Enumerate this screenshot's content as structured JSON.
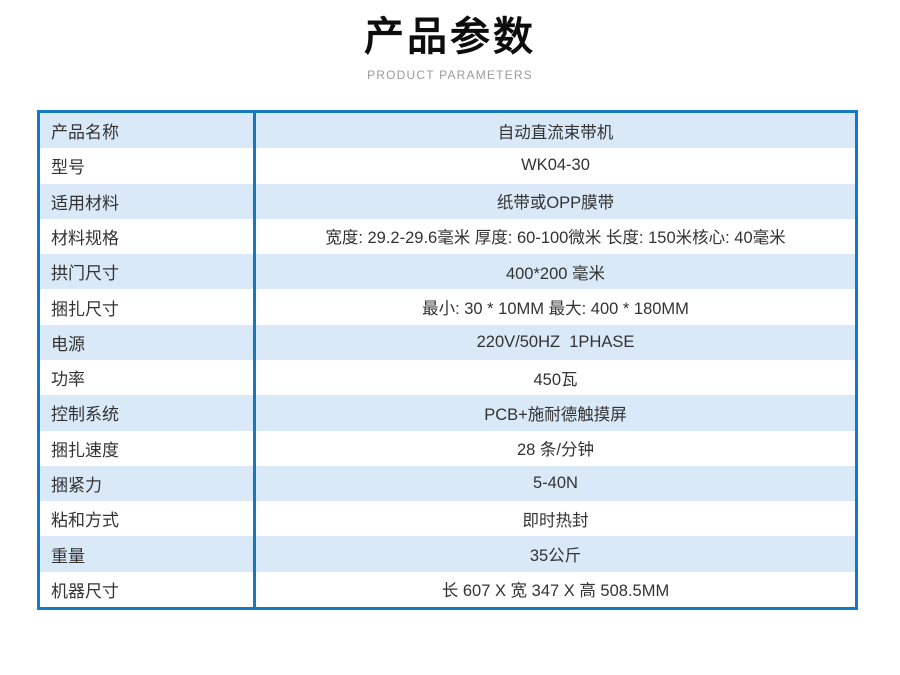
{
  "header": {
    "title": "产品参数",
    "subtitle": "PRODUCT PARAMETERS"
  },
  "table": {
    "rows": [
      {
        "label": "产品名称",
        "value": "自动直流束带机"
      },
      {
        "label": "型号",
        "value": "WK04-30"
      },
      {
        "label": "适用材料",
        "value": "纸带或OPP膜带"
      },
      {
        "label": "材料规格",
        "value": "宽度: 29.2-29.6毫米 厚度: 60-100微米 长度: 150米核心: 40毫米"
      },
      {
        "label": "拱门尺寸",
        "value": "400*200 毫米"
      },
      {
        "label": "捆扎尺寸",
        "value": "最小: 30 * 10MM 最大: 400 * 180MM"
      },
      {
        "label": "电源",
        "value": "220V/50HZ  1PHASE"
      },
      {
        "label": "功率",
        "value": "450瓦"
      },
      {
        "label": "控制系统",
        "value": "PCB+施耐德触摸屏"
      },
      {
        "label": "捆扎速度",
        "value": "28 条/分钟"
      },
      {
        "label": "捆紧力",
        "value": "5-40N"
      },
      {
        "label": "粘和方式",
        "value": "即时热封"
      },
      {
        "label": "重量",
        "value": "35公斤"
      },
      {
        "label": "机器尺寸",
        "value": "长 607 X 宽 347 X 高 508.5MM"
      }
    ]
  },
  "colors": {
    "table_border": "#1478c2",
    "row_alt_background": "#d9e9f8",
    "text": "#333333",
    "title_text": "#0d0d0d",
    "subtitle_text": "#9b9b9b"
  }
}
